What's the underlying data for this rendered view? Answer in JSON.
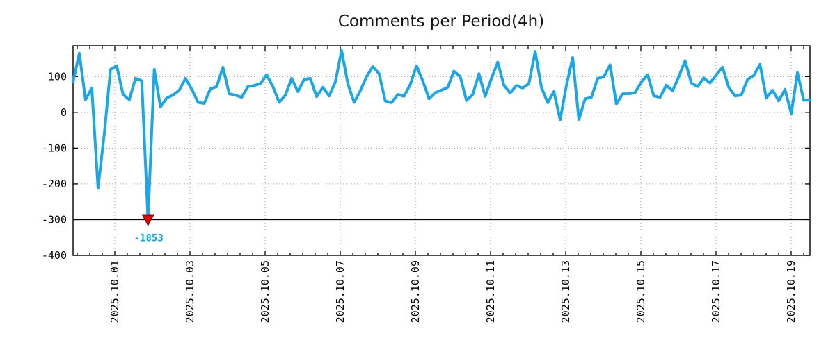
{
  "window": {
    "background": "#ffffff"
  },
  "chart_data": {
    "type": "line",
    "title": "Comments per Period(4h)",
    "period_hours": 4,
    "grid": "dotted",
    "legend": "none",
    "x_axis": {
      "tick_labels": [
        "2025.10.01",
        "2025.10.03",
        "2025.10.05",
        "2025.10.07",
        "2025.10.09",
        "2025.10.11",
        "2025.10.13",
        "2025.10.15",
        "2025.10.17",
        "2025.10.19"
      ],
      "tick_interval_days": 2,
      "minor_tick_hours": 8,
      "label_rotation_deg": -90
    },
    "y_axis": {
      "tick_labels": [
        "100",
        "0",
        "-100",
        "-200",
        "-300",
        "-400"
      ],
      "range": [
        -400,
        186
      ]
    },
    "baseline_value": -300,
    "clip_floor": -300,
    "series": {
      "color": "#1aa7e8",
      "values": [
        85,
        165,
        35,
        68,
        -212,
        -60,
        120,
        130,
        50,
        35,
        95,
        88,
        -1853,
        120,
        15,
        40,
        48,
        62,
        95,
        65,
        28,
        25,
        66,
        72,
        126,
        52,
        48,
        42,
        72,
        75,
        80,
        105,
        72,
        28,
        48,
        95,
        58,
        92,
        95,
        44,
        70,
        46,
        85,
        173,
        80,
        28,
        60,
        100,
        128,
        108,
        32,
        27,
        50,
        45,
        78,
        130,
        88,
        38,
        55,
        62,
        70,
        115,
        100,
        33,
        50,
        108,
        45,
        95,
        140,
        76,
        54,
        75,
        68,
        80,
        170,
        70,
        27,
        58,
        -21,
        75,
        153,
        -20,
        38,
        42,
        95,
        99,
        133,
        23,
        52,
        52,
        55,
        85,
        105,
        46,
        42,
        76,
        60,
        100,
        144,
        82,
        72,
        96,
        82,
        105,
        126,
        70,
        46,
        48,
        92,
        103,
        134,
        40,
        62,
        32,
        64,
        -3,
        111,
        34,
        34
      ]
    },
    "annotations": [
      {
        "text": "-1853",
        "value": -1853,
        "point_index": 12,
        "marker": "down-triangle",
        "marker_color": "#dd0000",
        "label_color": "#00a7ee"
      }
    ]
  }
}
